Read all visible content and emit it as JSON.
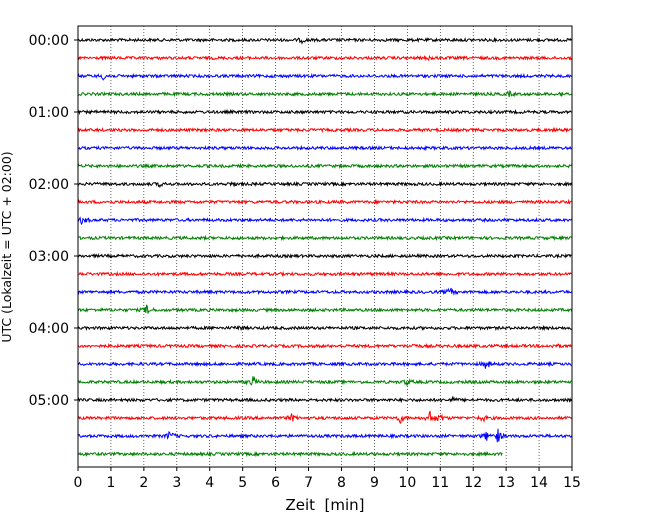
{
  "chart_data": {
    "type": "line",
    "title": "",
    "xlabel": "Zeit  [min]",
    "ylabel": "UTC (Lokalzeit = UTC + 02:00)",
    "xlim": [
      0,
      15
    ],
    "x_ticks": [
      "0",
      "1",
      "2",
      "3",
      "4",
      "5",
      "6",
      "7",
      "8",
      "9",
      "10",
      "11",
      "12",
      "13",
      "14",
      "15"
    ],
    "y_ticks": [
      "00:00",
      "01:00",
      "02:00",
      "03:00",
      "04:00",
      "05:00"
    ],
    "grid": "vertical-dotted",
    "colors": [
      "#000000",
      "#ff0000",
      "#0000ff",
      "#008000"
    ],
    "traces": [
      {
        "start": "00:00",
        "color": "#000000",
        "end_min": 15,
        "events": [
          [
            6.8,
            2
          ]
        ]
      },
      {
        "start": "00:15",
        "color": "#ff0000",
        "end_min": 15,
        "events": [
          [
            10.7,
            2
          ]
        ]
      },
      {
        "start": "00:30",
        "color": "#0000ff",
        "end_min": 15,
        "events": [
          [
            0.8,
            4
          ]
        ]
      },
      {
        "start": "00:45",
        "color": "#008000",
        "end_min": 15,
        "events": [
          [
            13.1,
            2
          ],
          [
            14.7,
            2
          ]
        ]
      },
      {
        "start": "01:00",
        "color": "#000000",
        "end_min": 15,
        "events": []
      },
      {
        "start": "01:15",
        "color": "#ff0000",
        "end_min": 15,
        "events": []
      },
      {
        "start": "01:30",
        "color": "#0000ff",
        "end_min": 15,
        "events": []
      },
      {
        "start": "01:45",
        "color": "#008000",
        "end_min": 15,
        "events": []
      },
      {
        "start": "02:00",
        "color": "#000000",
        "end_min": 15,
        "events": [
          [
            2.5,
            2
          ],
          [
            4.7,
            2
          ]
        ]
      },
      {
        "start": "02:15",
        "color": "#ff0000",
        "end_min": 15,
        "events": []
      },
      {
        "start": "02:30",
        "color": "#0000ff",
        "end_min": 15,
        "events": [
          [
            0.15,
            5
          ]
        ]
      },
      {
        "start": "02:45",
        "color": "#008000",
        "end_min": 15,
        "events": []
      },
      {
        "start": "03:00",
        "color": "#000000",
        "end_min": 15,
        "events": []
      },
      {
        "start": "03:15",
        "color": "#ff0000",
        "end_min": 15,
        "events": []
      },
      {
        "start": "03:30",
        "color": "#0000ff",
        "end_min": 15,
        "events": [
          [
            11.3,
            4
          ]
        ]
      },
      {
        "start": "03:45",
        "color": "#008000",
        "end_min": 15,
        "events": [
          [
            2.1,
            5
          ]
        ]
      },
      {
        "start": "04:00",
        "color": "#000000",
        "end_min": 15,
        "events": [
          [
            4.9,
            2
          ]
        ]
      },
      {
        "start": "04:15",
        "color": "#ff0000",
        "end_min": 15,
        "events": [
          [
            10.2,
            2
          ],
          [
            14.5,
            2
          ]
        ]
      },
      {
        "start": "04:30",
        "color": "#0000ff",
        "end_min": 15,
        "events": [
          [
            12.4,
            5
          ]
        ]
      },
      {
        "start": "04:45",
        "color": "#008000",
        "end_min": 15,
        "events": [
          [
            5.3,
            6
          ],
          [
            10.0,
            3
          ]
        ]
      },
      {
        "start": "05:00",
        "color": "#000000",
        "end_min": 15,
        "events": [
          [
            11.4,
            2
          ]
        ]
      },
      {
        "start": "05:15",
        "color": "#ff0000",
        "end_min": 15,
        "events": [
          [
            6.5,
            4
          ],
          [
            9.8,
            5
          ],
          [
            10.7,
            7
          ],
          [
            11.0,
            4
          ],
          [
            12.3,
            3
          ]
        ]
      },
      {
        "start": "05:30",
        "color": "#0000ff",
        "end_min": 15,
        "events": [
          [
            2.8,
            5
          ],
          [
            12.4,
            4
          ],
          [
            12.75,
            7
          ]
        ]
      },
      {
        "start": "05:45",
        "color": "#008000",
        "end_min": 12.9,
        "events": []
      }
    ]
  }
}
